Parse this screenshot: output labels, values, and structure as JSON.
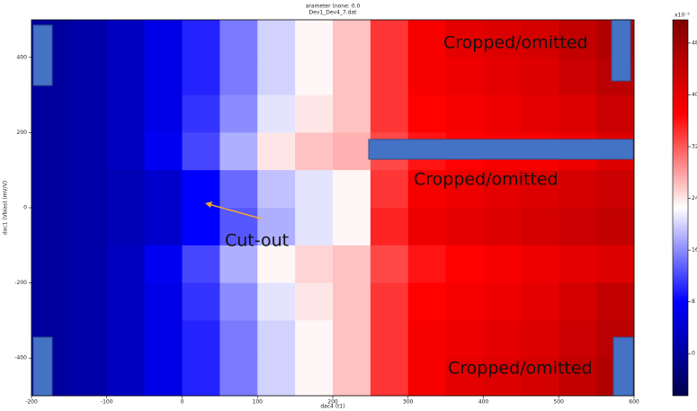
{
  "chart_data": {
    "type": "heatmap",
    "title": [
      "arameter (none: 0.0",
      "Dev1_Dev4_7.dat"
    ],
    "xlabel": "dac4 (t1)",
    "ylabel": "dac1 (Vbias) (mV/V)",
    "xlim": [
      -200,
      600
    ],
    "xticks": [
      -200,
      -100,
      0,
      100,
      200,
      300,
      400,
      500,
      600
    ],
    "ylim": [
      -500,
      500
    ],
    "yticks": [
      -400,
      -200,
      0,
      200,
      400
    ],
    "x_edges": [
      -200,
      -150,
      -100,
      -50,
      0,
      50,
      100,
      150,
      200,
      250,
      300,
      350,
      400,
      450,
      500,
      550,
      600
    ],
    "y_edges": [
      500,
      400,
      300,
      200,
      100,
      0,
      -100,
      -200,
      -300,
      -400,
      -500
    ],
    "z": [
      [
        0,
        1,
        3,
        6,
        10,
        15,
        20,
        23,
        26,
        34,
        38,
        40,
        41,
        42,
        44,
        46
      ],
      [
        0,
        1,
        3,
        6,
        10,
        15,
        20,
        23,
        26,
        34,
        38,
        39,
        40,
        41,
        43,
        45
      ],
      [
        0,
        1,
        3,
        6,
        11,
        16,
        21,
        24,
        26,
        34,
        37,
        38,
        39,
        40,
        41,
        43
      ],
      [
        0,
        1,
        3,
        7,
        12,
        18,
        24,
        26,
        27,
        33,
        36,
        37,
        38,
        38,
        39,
        41
      ],
      [
        0,
        1,
        2,
        4,
        8,
        14,
        19,
        21,
        23,
        34,
        38,
        39,
        40,
        41,
        42,
        43
      ],
      [
        0,
        1,
        2,
        4,
        8,
        13,
        18,
        21,
        23,
        35,
        39,
        40,
        41,
        42,
        43,
        44
      ],
      [
        0,
        1,
        3,
        7,
        12,
        18,
        23,
        25,
        26,
        33,
        36,
        37,
        38,
        39,
        40,
        41
      ],
      [
        0,
        1,
        3,
        6,
        11,
        16,
        21,
        24,
        26,
        34,
        37,
        38,
        39,
        40,
        42,
        44
      ],
      [
        0,
        1,
        3,
        6,
        10,
        15,
        20,
        23,
        26,
        34,
        38,
        39,
        40,
        41,
        43,
        45
      ],
      [
        0,
        1,
        3,
        6,
        10,
        15,
        20,
        23,
        26,
        34,
        38,
        40,
        41,
        42,
        44,
        46
      ]
    ],
    "colormap": "seismic",
    "clim": [
      -6.5,
      51.6
    ],
    "colorbar_ticks": [
      0,
      8,
      16,
      24,
      32,
      40,
      48
    ],
    "colorbar_label": "x10⁻⁵",
    "annotations": [
      "Cropped/omitted",
      "Cropped/omitted",
      "Cropped/omitted",
      "Cut-out"
    ]
  }
}
